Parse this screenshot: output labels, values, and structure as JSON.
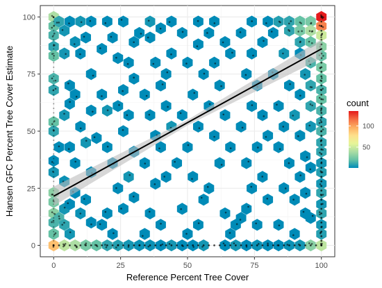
{
  "chart_data": {
    "type": "hexbin",
    "xlabel": "Reference Percent Tree Cover",
    "ylabel": "Hansen GFC Percent Tree Cover Estimate",
    "xlim": [
      -5,
      105
    ],
    "ylim": [
      -5,
      105
    ],
    "x_ticks": [
      0,
      25,
      50,
      75,
      100
    ],
    "y_ticks": [
      0,
      25,
      50,
      75,
      100
    ],
    "grid": true,
    "legend": {
      "title": "count",
      "placement": "right",
      "ticks": [
        50,
        100
      ],
      "range": [
        1,
        135
      ],
      "colors": [
        "#008BB7",
        "#66C2A5",
        "#ABDDA4",
        "#E6F598",
        "#FEE08B",
        "#FDAE61",
        "#F46D43",
        "#E41A1C"
      ]
    },
    "regression_line": {
      "x": [
        0,
        100
      ],
      "y": [
        21.5,
        86
      ]
    },
    "hexes": [
      {
        "x": 0,
        "y": 100,
        "c": 40
      },
      {
        "x": 0,
        "y": 96,
        "c": 20
      },
      {
        "x": 0,
        "y": 92,
        "c": 15
      },
      {
        "x": 0,
        "y": 87,
        "c": 10
      },
      {
        "x": 0,
        "y": 83,
        "c": 20
      },
      {
        "x": 0,
        "y": 73,
        "c": 15
      },
      {
        "x": 0,
        "y": 68,
        "c": 10
      },
      {
        "x": 0,
        "y": 54,
        "c": 20
      },
      {
        "x": 0,
        "y": 50,
        "c": 10
      },
      {
        "x": 0,
        "y": 37,
        "c": 1
      },
      {
        "x": 0,
        "y": 32,
        "c": 5
      },
      {
        "x": 0,
        "y": 23,
        "c": 30
      },
      {
        "x": 0,
        "y": 19,
        "c": 25
      },
      {
        "x": 0,
        "y": 14,
        "c": 30
      },
      {
        "x": 0,
        "y": 10,
        "c": 15
      },
      {
        "x": 0,
        "y": 5,
        "c": 20
      },
      {
        "x": 0,
        "y": 0,
        "c": 90
      },
      {
        "x": 4,
        "y": 0,
        "c": 45
      },
      {
        "x": 8,
        "y": 0,
        "c": 40
      },
      {
        "x": 12,
        "y": 0,
        "c": 25
      },
      {
        "x": 16,
        "y": 0,
        "c": 20
      },
      {
        "x": 20,
        "y": 0,
        "c": 10
      },
      {
        "x": 24,
        "y": 0,
        "c": 8
      },
      {
        "x": 28,
        "y": 0,
        "c": 5
      },
      {
        "x": 32,
        "y": 0,
        "c": 3
      },
      {
        "x": 36,
        "y": 0,
        "c": 3
      },
      {
        "x": 40,
        "y": 0,
        "c": 1
      },
      {
        "x": 44,
        "y": 0,
        "c": 5
      },
      {
        "x": 48,
        "y": 0,
        "c": 1
      },
      {
        "x": 52,
        "y": 0,
        "c": 1
      },
      {
        "x": 56,
        "y": 0,
        "c": 5
      },
      {
        "x": 64,
        "y": 0,
        "c": 1
      },
      {
        "x": 68,
        "y": 0,
        "c": 5
      },
      {
        "x": 72,
        "y": 0,
        "c": 1
      },
      {
        "x": 76,
        "y": 0,
        "c": 3
      },
      {
        "x": 80,
        "y": 0,
        "c": 1
      },
      {
        "x": 84,
        "y": 0,
        "c": 1
      },
      {
        "x": 88,
        "y": 0,
        "c": 3
      },
      {
        "x": 92,
        "y": 0,
        "c": 5
      },
      {
        "x": 96,
        "y": 0,
        "c": 30
      },
      {
        "x": 100,
        "y": 0,
        "c": 45
      },
      {
        "x": 2,
        "y": 98,
        "c": 10
      },
      {
        "x": 6,
        "y": 98,
        "c": 1
      },
      {
        "x": 10,
        "y": 98,
        "c": 5
      },
      {
        "x": 14,
        "y": 98,
        "c": 1
      },
      {
        "x": 20,
        "y": 98,
        "c": 1
      },
      {
        "x": 26,
        "y": 98,
        "c": 1
      },
      {
        "x": 36,
        "y": 98,
        "c": 5
      },
      {
        "x": 44,
        "y": 98,
        "c": 1
      },
      {
        "x": 54,
        "y": 98,
        "c": 1
      },
      {
        "x": 60,
        "y": 98,
        "c": 1
      },
      {
        "x": 74,
        "y": 98,
        "c": 1
      },
      {
        "x": 80,
        "y": 98,
        "c": 1
      },
      {
        "x": 84,
        "y": 98,
        "c": 8
      },
      {
        "x": 88,
        "y": 98,
        "c": 10
      },
      {
        "x": 92,
        "y": 98,
        "c": 20
      },
      {
        "x": 96,
        "y": 98,
        "c": 25
      },
      {
        "x": 100,
        "y": 100,
        "c": 135
      },
      {
        "x": 100,
        "y": 96,
        "c": 110
      },
      {
        "x": 100,
        "y": 92,
        "c": 50
      },
      {
        "x": 100,
        "y": 87,
        "c": 30
      },
      {
        "x": 100,
        "y": 83,
        "c": 20
      },
      {
        "x": 100,
        "y": 78,
        "c": 25
      },
      {
        "x": 100,
        "y": 73,
        "c": 20
      },
      {
        "x": 100,
        "y": 68,
        "c": 15
      },
      {
        "x": 100,
        "y": 64,
        "c": 20
      },
      {
        "x": 100,
        "y": 59,
        "c": 15
      },
      {
        "x": 100,
        "y": 54,
        "c": 10
      },
      {
        "x": 100,
        "y": 50,
        "c": 15
      },
      {
        "x": 100,
        "y": 45,
        "c": 10
      },
      {
        "x": 100,
        "y": 41,
        "c": 10
      },
      {
        "x": 100,
        "y": 36,
        "c": 5
      },
      {
        "x": 100,
        "y": 32,
        "c": 8
      },
      {
        "x": 100,
        "y": 27,
        "c": 5
      },
      {
        "x": 100,
        "y": 23,
        "c": 10
      },
      {
        "x": 100,
        "y": 18,
        "c": 5
      },
      {
        "x": 100,
        "y": 14,
        "c": 10
      },
      {
        "x": 100,
        "y": 9,
        "c": 5
      },
      {
        "x": 100,
        "y": 5,
        "c": 8
      },
      {
        "x": 96,
        "y": 94,
        "c": 40
      },
      {
        "x": 92,
        "y": 94,
        "c": 25
      },
      {
        "x": 88,
        "y": 94,
        "c": 10
      },
      {
        "x": 96,
        "y": 89,
        "c": 20
      },
      {
        "x": 92,
        "y": 89,
        "c": 10
      },
      {
        "x": 96,
        "y": 80,
        "c": 15
      },
      {
        "x": 96,
        "y": 70,
        "c": 10
      },
      {
        "x": 96,
        "y": 61,
        "c": 10
      },
      {
        "x": 96,
        "y": 52,
        "c": 5
      },
      {
        "x": 4,
        "y": 94,
        "c": 5
      },
      {
        "x": 8,
        "y": 89,
        "c": 3
      },
      {
        "x": 4,
        "y": 84,
        "c": 5
      },
      {
        "x": 6,
        "y": 62,
        "c": 1
      },
      {
        "x": 4,
        "y": 57,
        "c": 5
      },
      {
        "x": 2,
        "y": 43,
        "c": 1
      },
      {
        "x": 4,
        "y": 28,
        "c": 3
      },
      {
        "x": 4,
        "y": 16,
        "c": 5
      },
      {
        "x": 2,
        "y": 12,
        "c": 15
      },
      {
        "x": 4,
        "y": 9,
        "c": 10
      },
      {
        "x": 6,
        "y": 5,
        "c": 5
      },
      {
        "x": 12,
        "y": 91,
        "c": 1
      },
      {
        "x": 10,
        "y": 84,
        "c": 1
      },
      {
        "x": 14,
        "y": 75,
        "c": 1
      },
      {
        "x": 6,
        "y": 70,
        "c": 1
      },
      {
        "x": 8,
        "y": 66,
        "c": 1
      },
      {
        "x": 14,
        "y": 59,
        "c": 1
      },
      {
        "x": 10,
        "y": 52,
        "c": 1
      },
      {
        "x": 16,
        "y": 47,
        "c": 1
      },
      {
        "x": 12,
        "y": 45,
        "c": 5
      },
      {
        "x": 20,
        "y": 43,
        "c": 1
      },
      {
        "x": 6,
        "y": 43,
        "c": 1
      },
      {
        "x": 8,
        "y": 36,
        "c": 1
      },
      {
        "x": 14,
        "y": 32,
        "c": 1
      },
      {
        "x": 8,
        "y": 23,
        "c": 1
      },
      {
        "x": 12,
        "y": 20,
        "c": 1
      },
      {
        "x": 6,
        "y": 18,
        "c": 1
      },
      {
        "x": 10,
        "y": 14,
        "c": 3
      },
      {
        "x": 14,
        "y": 10,
        "c": 1
      },
      {
        "x": 18,
        "y": 9,
        "c": 1
      },
      {
        "x": 20,
        "y": 14,
        "c": 1
      },
      {
        "x": 22,
        "y": 91,
        "c": 1
      },
      {
        "x": 18,
        "y": 86,
        "c": 1
      },
      {
        "x": 24,
        "y": 82,
        "c": 1
      },
      {
        "x": 28,
        "y": 80,
        "c": 1
      },
      {
        "x": 30,
        "y": 89,
        "c": 1
      },
      {
        "x": 32,
        "y": 93,
        "c": 1
      },
      {
        "x": 26,
        "y": 68,
        "c": 1
      },
      {
        "x": 30,
        "y": 73,
        "c": 1
      },
      {
        "x": 24,
        "y": 61,
        "c": 1
      },
      {
        "x": 20,
        "y": 59,
        "c": 5
      },
      {
        "x": 18,
        "y": 66,
        "c": 1
      },
      {
        "x": 28,
        "y": 57,
        "c": 1
      },
      {
        "x": 26,
        "y": 50,
        "c": 1
      },
      {
        "x": 22,
        "y": 36,
        "c": 1
      },
      {
        "x": 30,
        "y": 41,
        "c": 1
      },
      {
        "x": 24,
        "y": 25,
        "c": 1
      },
      {
        "x": 28,
        "y": 30,
        "c": 5
      },
      {
        "x": 30,
        "y": 21,
        "c": 1
      },
      {
        "x": 26,
        "y": 16,
        "c": 1
      },
      {
        "x": 22,
        "y": 5,
        "c": 1
      },
      {
        "x": 36,
        "y": 91,
        "c": 1
      },
      {
        "x": 40,
        "y": 95,
        "c": 1
      },
      {
        "x": 38,
        "y": 80,
        "c": 1
      },
      {
        "x": 44,
        "y": 84,
        "c": 1
      },
      {
        "x": 42,
        "y": 75,
        "c": 1
      },
      {
        "x": 34,
        "y": 66,
        "c": 1
      },
      {
        "x": 40,
        "y": 70,
        "c": 1
      },
      {
        "x": 36,
        "y": 57,
        "c": 1
      },
      {
        "x": 42,
        "y": 61,
        "c": 1
      },
      {
        "x": 38,
        "y": 48,
        "c": 1
      },
      {
        "x": 44,
        "y": 52,
        "c": 5
      },
      {
        "x": 40,
        "y": 43,
        "c": 1
      },
      {
        "x": 34,
        "y": 36,
        "c": 1
      },
      {
        "x": 38,
        "y": 27,
        "c": 1
      },
      {
        "x": 42,
        "y": 30,
        "c": 1
      },
      {
        "x": 36,
        "y": 14,
        "c": 1
      },
      {
        "x": 40,
        "y": 9,
        "c": 1
      },
      {
        "x": 34,
        "y": 5,
        "c": 1
      },
      {
        "x": 48,
        "y": 93,
        "c": 1
      },
      {
        "x": 54,
        "y": 88,
        "c": 1
      },
      {
        "x": 50,
        "y": 80,
        "c": 1
      },
      {
        "x": 56,
        "y": 75,
        "c": 1
      },
      {
        "x": 52,
        "y": 66,
        "c": 1
      },
      {
        "x": 48,
        "y": 57,
        "c": 1
      },
      {
        "x": 54,
        "y": 52,
        "c": 1
      },
      {
        "x": 50,
        "y": 43,
        "c": 1
      },
      {
        "x": 46,
        "y": 36,
        "c": 1
      },
      {
        "x": 52,
        "y": 30,
        "c": 1
      },
      {
        "x": 56,
        "y": 20,
        "c": 1
      },
      {
        "x": 48,
        "y": 16,
        "c": 1
      },
      {
        "x": 54,
        "y": 9,
        "c": 1
      },
      {
        "x": 50,
        "y": 5,
        "c": 1
      },
      {
        "x": 58,
        "y": 93,
        "c": 1
      },
      {
        "x": 64,
        "y": 89,
        "c": 1
      },
      {
        "x": 60,
        "y": 80,
        "c": 1
      },
      {
        "x": 66,
        "y": 84,
        "c": 1
      },
      {
        "x": 62,
        "y": 70,
        "c": 1
      },
      {
        "x": 58,
        "y": 61,
        "c": 1
      },
      {
        "x": 64,
        "y": 57,
        "c": 1
      },
      {
        "x": 60,
        "y": 48,
        "c": 1
      },
      {
        "x": 66,
        "y": 43,
        "c": 1
      },
      {
        "x": 62,
        "y": 36,
        "c": 1
      },
      {
        "x": 58,
        "y": 25,
        "c": 1
      },
      {
        "x": 64,
        "y": 14,
        "c": 1
      },
      {
        "x": 68,
        "y": 9,
        "c": 1
      },
      {
        "x": 66,
        "y": 5,
        "c": 1
      },
      {
        "x": 70,
        "y": 12,
        "c": 1
      },
      {
        "x": 72,
        "y": 16,
        "c": 1
      },
      {
        "x": 70,
        "y": 93,
        "c": 1
      },
      {
        "x": 74,
        "y": 84,
        "c": 1
      },
      {
        "x": 78,
        "y": 89,
        "c": 1
      },
      {
        "x": 72,
        "y": 75,
        "c": 1
      },
      {
        "x": 76,
        "y": 70,
        "c": 1
      },
      {
        "x": 74,
        "y": 61,
        "c": 1
      },
      {
        "x": 78,
        "y": 57,
        "c": 1
      },
      {
        "x": 70,
        "y": 52,
        "c": 1
      },
      {
        "x": 76,
        "y": 43,
        "c": 1
      },
      {
        "x": 80,
        "y": 48,
        "c": 1
      },
      {
        "x": 72,
        "y": 36,
        "c": 1
      },
      {
        "x": 78,
        "y": 30,
        "c": 1
      },
      {
        "x": 74,
        "y": 25,
        "c": 1
      },
      {
        "x": 80,
        "y": 20,
        "c": 1
      },
      {
        "x": 76,
        "y": 9,
        "c": 1
      },
      {
        "x": 82,
        "y": 93,
        "c": 1
      },
      {
        "x": 86,
        "y": 84,
        "c": 5
      },
      {
        "x": 82,
        "y": 75,
        "c": 1
      },
      {
        "x": 88,
        "y": 70,
        "c": 1
      },
      {
        "x": 84,
        "y": 61,
        "c": 1
      },
      {
        "x": 90,
        "y": 57,
        "c": 5
      },
      {
        "x": 86,
        "y": 52,
        "c": 1
      },
      {
        "x": 92,
        "y": 48,
        "c": 1
      },
      {
        "x": 84,
        "y": 43,
        "c": 1
      },
      {
        "x": 88,
        "y": 36,
        "c": 1
      },
      {
        "x": 92,
        "y": 30,
        "c": 1
      },
      {
        "x": 86,
        "y": 25,
        "c": 1
      },
      {
        "x": 90,
        "y": 20,
        "c": 1
      },
      {
        "x": 94,
        "y": 14,
        "c": 1
      },
      {
        "x": 84,
        "y": 9,
        "c": 1
      },
      {
        "x": 90,
        "y": 5,
        "c": 1
      },
      {
        "x": 92,
        "y": 84,
        "c": 1
      },
      {
        "x": 94,
        "y": 75,
        "c": 5
      },
      {
        "x": 92,
        "y": 66,
        "c": 1
      },
      {
        "x": 94,
        "y": 39,
        "c": 1
      },
      {
        "x": 96,
        "y": 34,
        "c": 1
      },
      {
        "x": 94,
        "y": 23,
        "c": 1
      },
      {
        "x": 96,
        "y": 12,
        "c": 1
      }
    ]
  }
}
